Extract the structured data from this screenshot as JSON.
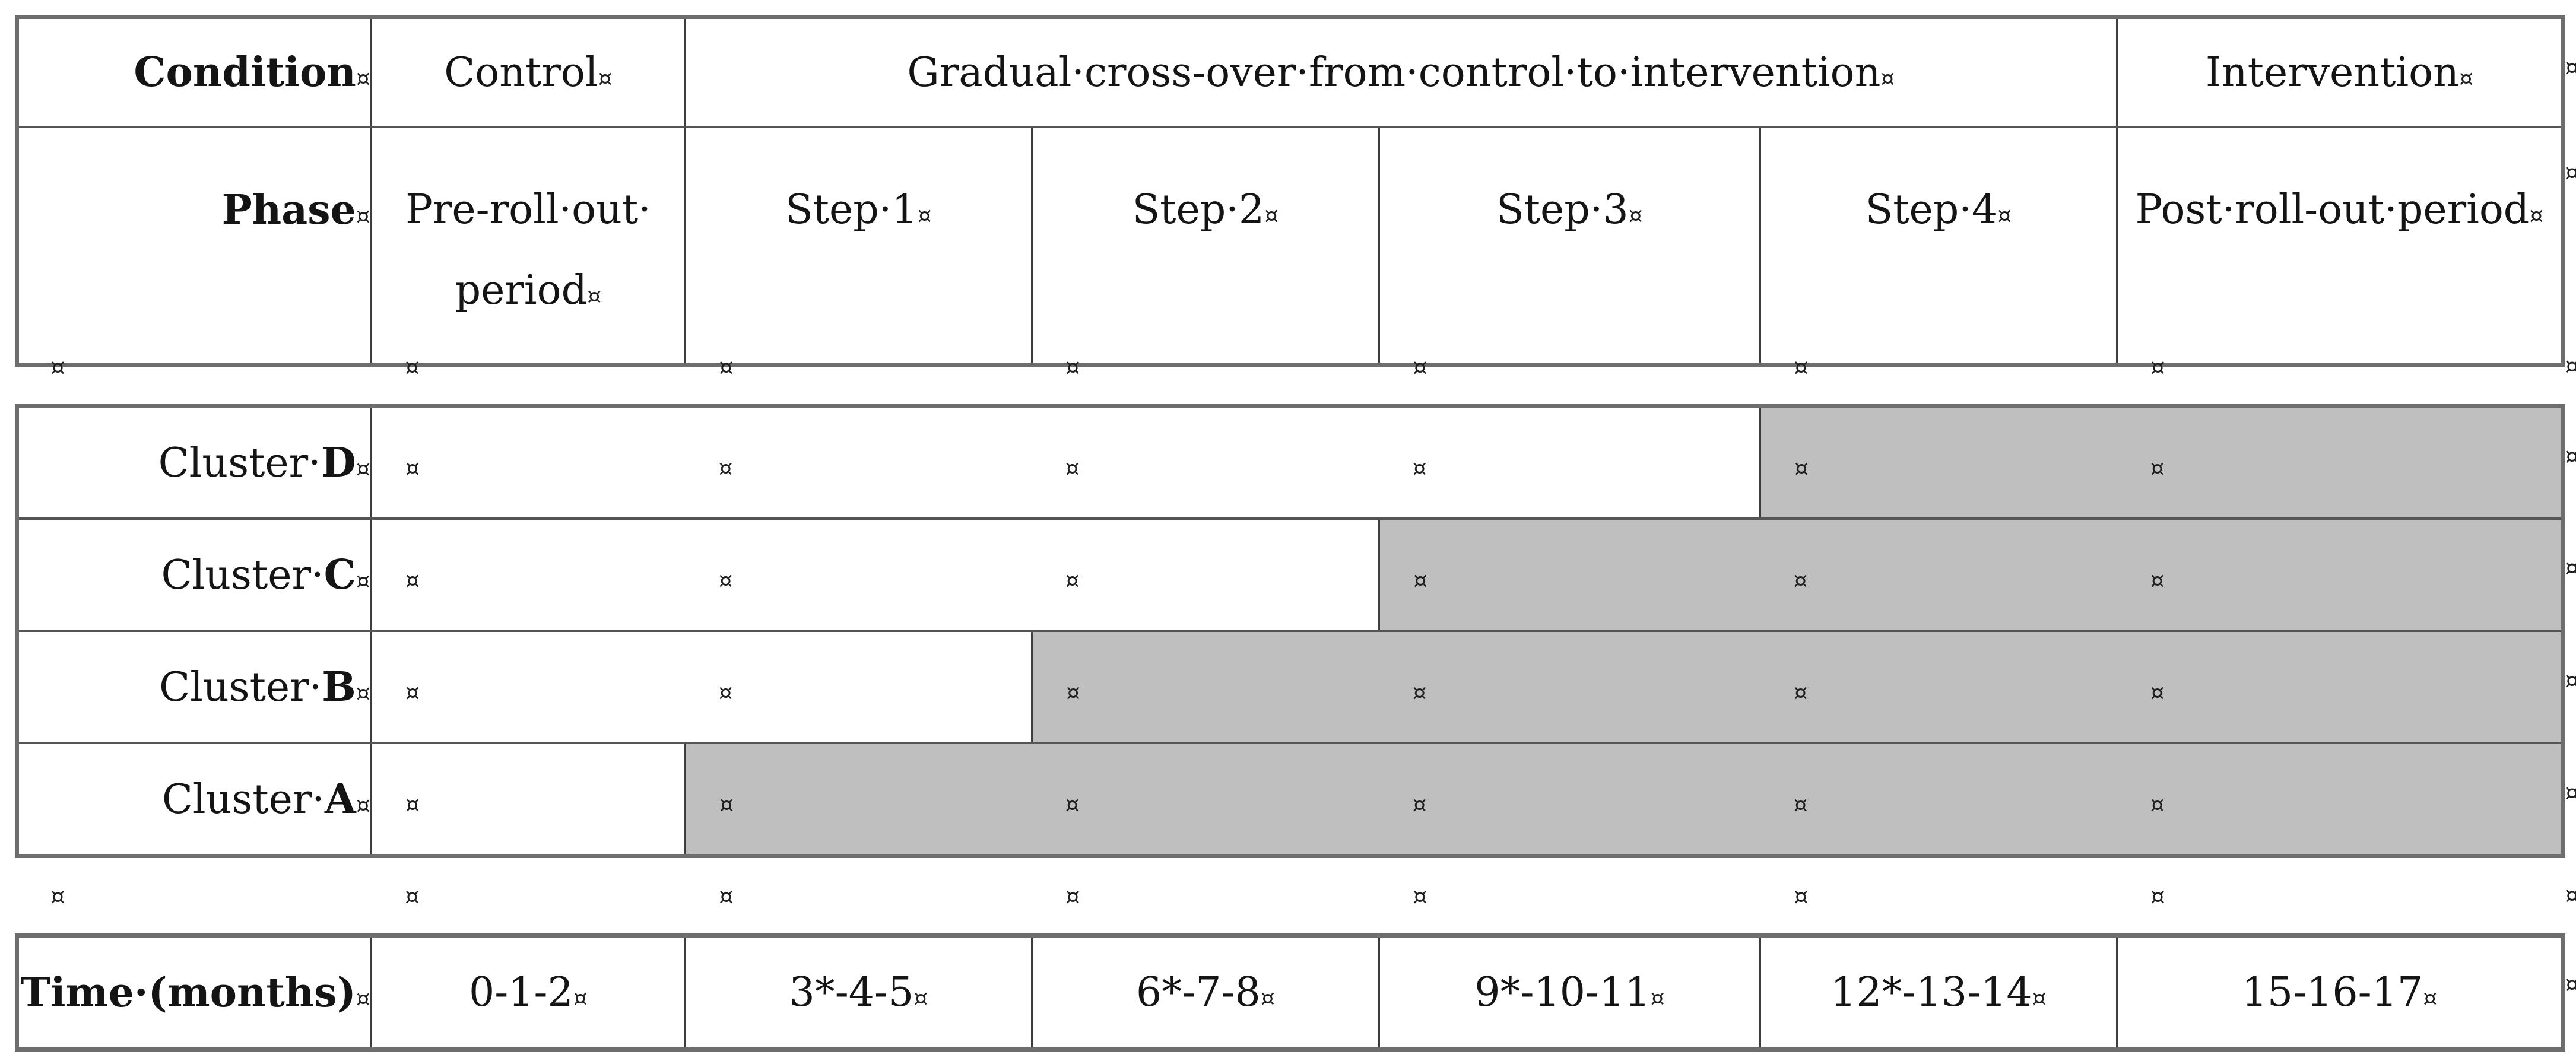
{
  "marks": {
    "cell_end": "¤"
  },
  "colors": {
    "shaded_cell": "#bfbfbf",
    "unshaded_cell": "#ffffff"
  },
  "header_table": {
    "condition_row": {
      "label": "Condition",
      "control": "Control",
      "crossover": "Gradual·cross-over·from·control·to·intervention",
      "intervention": "Intervention"
    },
    "phase_row": {
      "label": "Phase",
      "cells": [
        "Pre-roll·out· period",
        "Step·1",
        "Step·2",
        "Step·3",
        "Step·4",
        "Post·roll-out·period"
      ]
    }
  },
  "cluster_table": {
    "rows": [
      {
        "label_prefix": "Cluster·",
        "letter": "D",
        "unshaded_cells": 4,
        "shaded_cells": 2
      },
      {
        "label_prefix": "Cluster·",
        "letter": "C",
        "unshaded_cells": 3,
        "shaded_cells": 3
      },
      {
        "label_prefix": "Cluster·",
        "letter": "B",
        "unshaded_cells": 2,
        "shaded_cells": 4
      },
      {
        "label_prefix": "Cluster·",
        "letter": "A",
        "unshaded_cells": 1,
        "shaded_cells": 5
      }
    ]
  },
  "time_table": {
    "label": "Time·(months)",
    "cells": [
      "0-1-2",
      "3*-4-5",
      "6*-7-8",
      "9*-10-11",
      "12*-13-14",
      "15-16-17"
    ]
  }
}
